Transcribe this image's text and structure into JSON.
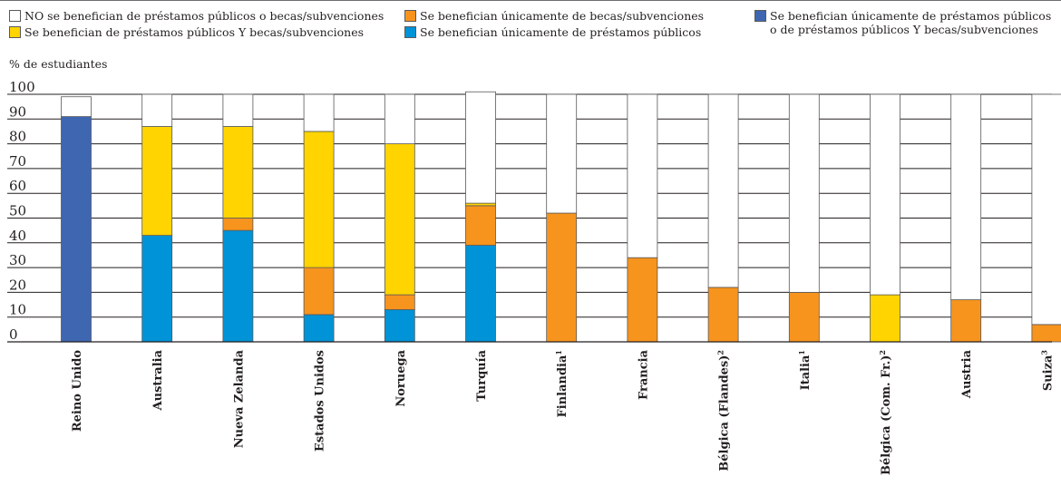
{
  "chart_data": {
    "type": "bar",
    "stacked": true,
    "ylabel": "% de estudiantes",
    "ylim": [
      0,
      100
    ],
    "yticks": [
      0,
      10,
      20,
      30,
      40,
      50,
      60,
      70,
      80,
      90,
      100
    ],
    "grid": true,
    "legend_position": "top",
    "categories": [
      {
        "name": "Reino Unido",
        "sup": ""
      },
      {
        "name": "Australia",
        "sup": ""
      },
      {
        "name": "Nueva Zelanda",
        "sup": ""
      },
      {
        "name": "Estados Unidos",
        "sup": ""
      },
      {
        "name": "Noruega",
        "sup": ""
      },
      {
        "name": "Turquía",
        "sup": ""
      },
      {
        "name": "Finlandia",
        "sup": "1"
      },
      {
        "name": "Francia",
        "sup": ""
      },
      {
        "name": "Bélgica (Flandes)",
        "sup": "2"
      },
      {
        "name": "Italia",
        "sup": "1"
      },
      {
        "name": "Bélgica (Com. Fr.)",
        "sup": "2"
      },
      {
        "name": "Austria",
        "sup": ""
      },
      {
        "name": "Suiza",
        "sup": "3"
      }
    ],
    "series": [
      {
        "key": "dark_blue",
        "name": "Se benefician únicamente de préstamos públicos o de préstamos públicos Y becas/subvenciones",
        "color": "#3f67b1",
        "values": [
          91,
          0,
          0,
          0,
          0,
          0,
          0,
          0,
          0,
          0,
          0,
          0,
          0
        ]
      },
      {
        "key": "light_blue",
        "name": "Se benefician únicamente de préstamos públicos",
        "color": "#0093d7",
        "values": [
          0,
          43,
          45,
          11,
          13,
          39,
          0,
          0,
          0,
          0,
          0,
          0,
          0
        ]
      },
      {
        "key": "orange",
        "name": "Se benefician únicamente de becas/subvenciones",
        "color": "#f7941d",
        "values": [
          0,
          0,
          5,
          19,
          6,
          16,
          52,
          34,
          22,
          20,
          0,
          17,
          7
        ]
      },
      {
        "key": "yellow",
        "name": "Se benefician de préstamos públicos Y becas/subvenciones",
        "color": "#ffd400",
        "values": [
          0,
          44,
          37,
          55,
          61,
          1,
          0,
          0,
          0,
          0,
          19,
          0,
          0
        ]
      },
      {
        "key": "white",
        "name": "NO se benefician de préstamos públicos o becas/subvenciones",
        "color": "#ffffff",
        "values": [
          8,
          13,
          13,
          15,
          20,
          45,
          48,
          66,
          78,
          80,
          81,
          83,
          93
        ]
      }
    ]
  },
  "legend": [
    {
      "text": "NO se benefician de préstamos públicos o becas/subvenciones",
      "color": "#ffffff"
    },
    {
      "text": "Se benefician de préstamos públicos Y becas/subvenciones",
      "color": "#ffd400"
    },
    {
      "text": "Se benefician únicamente de becas/subvenciones",
      "color": "#f7941d"
    },
    {
      "text": "Se benefician únicamente de préstamos públicos",
      "color": "#0093d7"
    },
    {
      "text": "Se benefician únicamente de préstamos públicos\no de préstamos públicos Y becas/subvenciones",
      "color": "#3f67b1"
    }
  ]
}
